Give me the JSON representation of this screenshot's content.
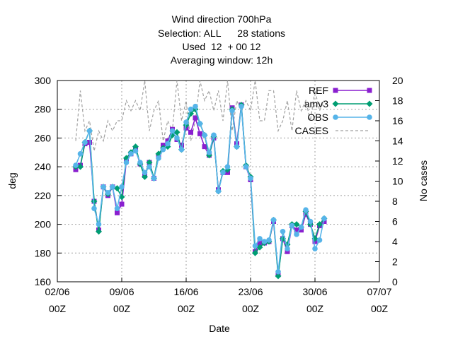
{
  "chart_data": {
    "type": "line",
    "title_lines": [
      "Wind direction 700hPa",
      "Selection: ALL      28 stations",
      "Used  12  + 00 12",
      "Averaging window: 12h"
    ],
    "xlabel": "Date",
    "ylabel": "deg",
    "y2label": "No cases",
    "x_ticks": [
      {
        "date": "2024-06-02",
        "line1": "02/06",
        "line2": "00Z"
      },
      {
        "date": "2024-06-09",
        "line1": "09/06",
        "line2": "00Z"
      },
      {
        "date": "2024-06-16",
        "line1": "16/06",
        "line2": "00Z"
      },
      {
        "date": "2024-06-23",
        "line1": "23/06",
        "line2": "00Z"
      },
      {
        "date": "2024-06-30",
        "line1": "30/06",
        "line2": "00Z"
      },
      {
        "date": "2024-07-07",
        "line1": "07/07",
        "line2": "00Z"
      }
    ],
    "xlim": [
      "2024-06-02T00:00",
      "2024-07-07T00:00"
    ],
    "ylim": [
      160,
      300
    ],
    "y_ticks": [
      160,
      180,
      200,
      220,
      240,
      260,
      280,
      300
    ],
    "y2lim": [
      0,
      20
    ],
    "y2_ticks": [
      0,
      2,
      4,
      6,
      8,
      10,
      12,
      14,
      16,
      18,
      20
    ],
    "grid": true,
    "legend_position": "top-right",
    "x": [
      "2024-06-04T00:00",
      "2024-06-04T12:00",
      "2024-06-05T00:00",
      "2024-06-05T12:00",
      "2024-06-06T00:00",
      "2024-06-06T12:00",
      "2024-06-07T00:00",
      "2024-06-07T12:00",
      "2024-06-08T00:00",
      "2024-06-08T12:00",
      "2024-06-09T00:00",
      "2024-06-09T12:00",
      "2024-06-10T00:00",
      "2024-06-10T12:00",
      "2024-06-11T00:00",
      "2024-06-11T12:00",
      "2024-06-12T00:00",
      "2024-06-12T12:00",
      "2024-06-13T00:00",
      "2024-06-13T12:00",
      "2024-06-14T00:00",
      "2024-06-14T12:00",
      "2024-06-15T00:00",
      "2024-06-15T12:00",
      "2024-06-16T00:00",
      "2024-06-16T12:00",
      "2024-06-17T00:00",
      "2024-06-17T12:00",
      "2024-06-18T00:00",
      "2024-06-18T12:00",
      "2024-06-19T00:00",
      "2024-06-19T12:00",
      "2024-06-20T00:00",
      "2024-06-20T12:00",
      "2024-06-21T00:00",
      "2024-06-21T12:00",
      "2024-06-22T00:00",
      "2024-06-22T12:00",
      "2024-06-23T00:00",
      "2024-06-23T12:00",
      "2024-06-24T00:00",
      "2024-06-24T12:00",
      "2024-06-25T00:00",
      "2024-06-25T12:00",
      "2024-06-26T00:00",
      "2024-06-26T12:00",
      "2024-06-27T00:00",
      "2024-06-27T12:00",
      "2024-06-28T00:00",
      "2024-06-28T12:00",
      "2024-06-29T00:00",
      "2024-06-29T12:00",
      "2024-06-30T00:00",
      "2024-06-30T12:00",
      "2024-07-01T00:00"
    ],
    "series": [
      {
        "name": "REF",
        "color": "#8a1fcf",
        "marker": "square",
        "values": [
          238,
          241,
          256,
          257,
          216,
          196,
          226,
          220,
          226,
          208,
          214,
          244,
          249,
          252,
          242,
          234,
          243,
          232,
          247,
          255,
          258,
          266,
          259,
          255,
          267,
          264,
          274,
          263,
          254,
          248,
          260,
          224,
          236,
          236,
          281,
          256,
          283,
          240,
          231,
          181,
          187,
          187,
          188,
          202,
          165,
          190,
          181,
          199,
          196,
          196,
          207,
          200,
          188,
          199,
          202
        ]
      },
      {
        "name": "amv3",
        "color": "#009e73",
        "marker": "diamond",
        "values": [
          240,
          240,
          257,
          265,
          216,
          195,
          226,
          221,
          226,
          225,
          219,
          246,
          250,
          254,
          242,
          233,
          243,
          232,
          249,
          253,
          254,
          262,
          264,
          252,
          269,
          277,
          280,
          270,
          262,
          248,
          261,
          223,
          237,
          238,
          280,
          254,
          283,
          241,
          233,
          180,
          184,
          187,
          188,
          203,
          164,
          190,
          186,
          200,
          200,
          198,
          209,
          200,
          190,
          200,
          204
        ]
      },
      {
        "name": "OBS",
        "color": "#56b4e9",
        "marker": "circle",
        "values": [
          241,
          249,
          257,
          265,
          211,
          200,
          226,
          222,
          226,
          211,
          226,
          243,
          249,
          251,
          243,
          236,
          240,
          232,
          246,
          252,
          256,
          265,
          260,
          252,
          271,
          280,
          282,
          270,
          262,
          250,
          262,
          223,
          236,
          240,
          279,
          254,
          282,
          240,
          232,
          185,
          190,
          188,
          189,
          203,
          167,
          195,
          183,
          199,
          193,
          198,
          210,
          202,
          183,
          189,
          204
        ]
      },
      {
        "name": "CASES",
        "color": "#a0a0a0",
        "dash": true,
        "axis": "y2",
        "values": [
          14,
          19,
          15,
          16,
          13,
          15,
          14,
          16,
          15,
          16,
          16,
          18,
          17,
          18,
          17,
          20,
          15,
          17,
          18,
          14,
          16,
          15,
          20,
          16,
          18,
          14,
          16,
          20,
          18,
          19,
          17,
          19,
          16,
          20,
          15,
          18,
          17,
          18,
          17,
          20,
          16,
          16,
          19,
          19,
          15,
          16,
          18,
          15,
          19,
          17,
          18,
          16,
          19,
          17,
          18
        ]
      }
    ]
  }
}
